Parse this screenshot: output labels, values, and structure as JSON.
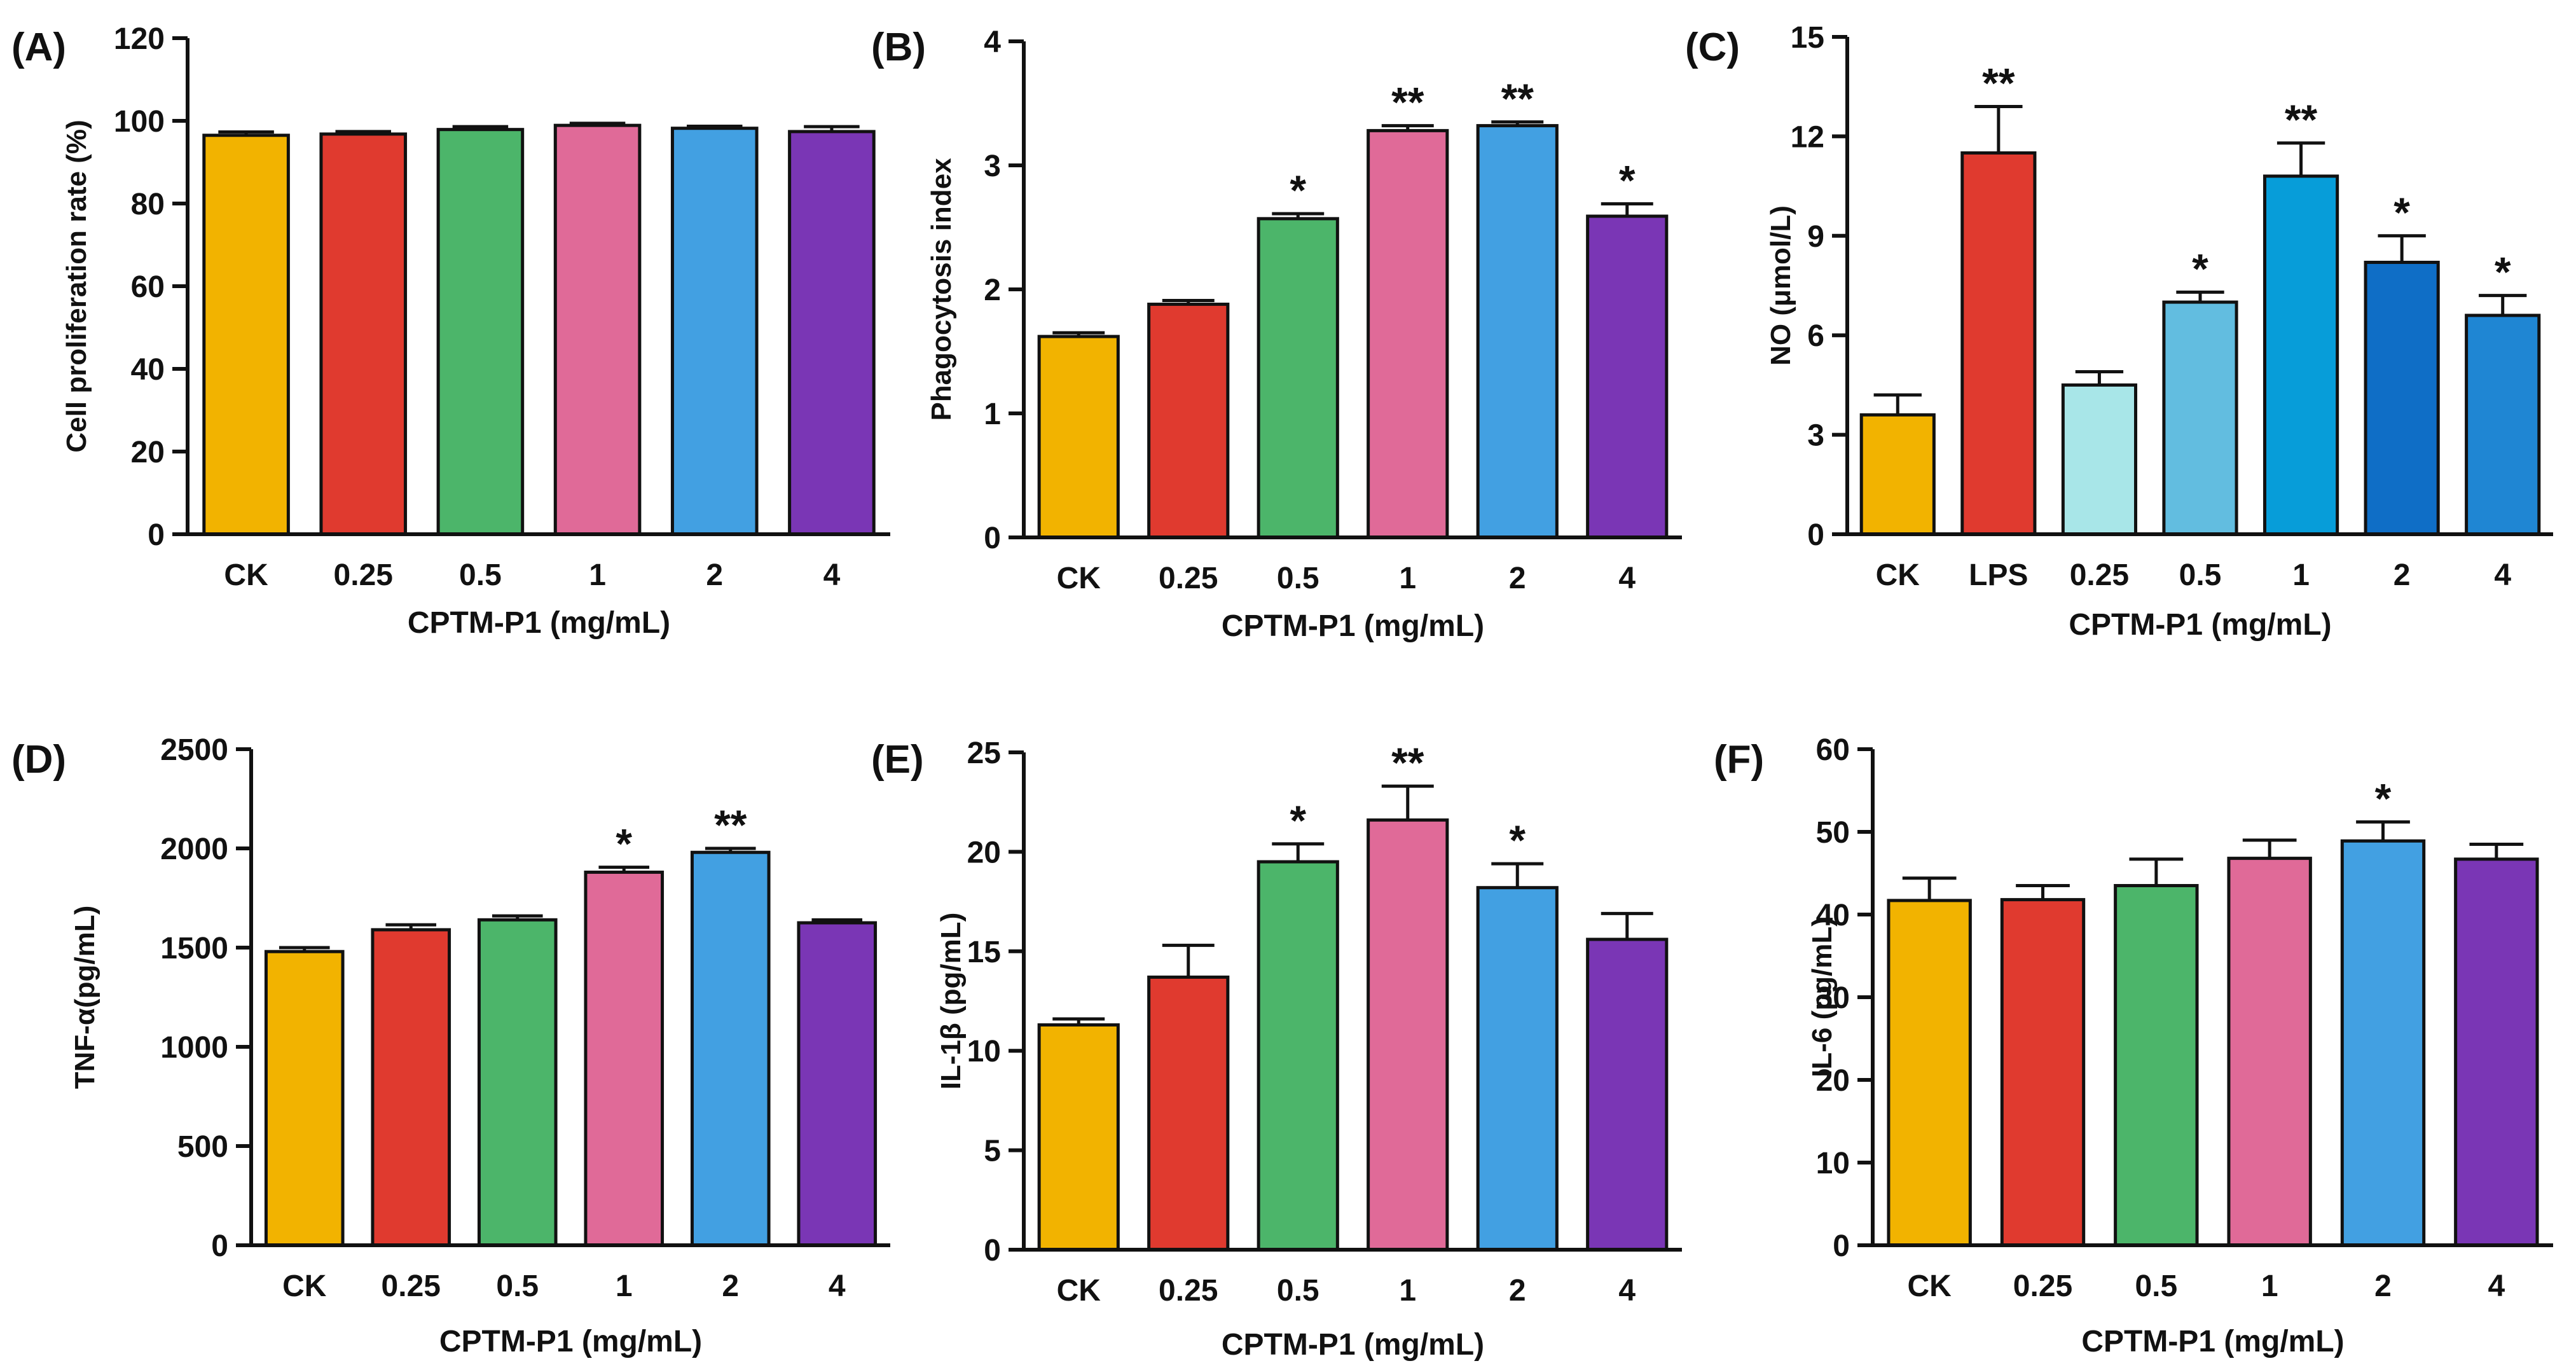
{
  "figure": {
    "background": "#ffffff",
    "axis_color": "#111111",
    "bar_stroke": "#111111"
  },
  "chart_data": [
    {
      "panel_label": "(A)",
      "type": "bar",
      "categories": [
        "CK",
        "0.25",
        "0.5",
        "1",
        "2",
        "4"
      ],
      "values": [
        96.5,
        96.8,
        97.9,
        98.9,
        98.2,
        97.4
      ],
      "errors": [
        0.8,
        0.6,
        0.7,
        0.5,
        0.5,
        1.2
      ],
      "significance": [
        "",
        "",
        "",
        "",
        "",
        ""
      ],
      "colors": [
        "#f2b300",
        "#e03a2f",
        "#4cb56a",
        "#e06a98",
        "#42a0e2",
        "#7a36b5"
      ],
      "xlabel": "CPTM-P1 (mg/mL)",
      "ylabel": "Cell proliferation rate (%)",
      "ylim": [
        0,
        120
      ],
      "yticks": [
        0,
        20,
        40,
        60,
        80,
        100,
        120
      ],
      "ytick_labels": [
        "0",
        "20",
        "40",
        "60",
        "80",
        "100",
        "120"
      ]
    },
    {
      "panel_label": "(B)",
      "type": "bar",
      "categories": [
        "CK",
        "0.25",
        "0.5",
        "1",
        "2",
        "4"
      ],
      "values": [
        1.62,
        1.88,
        2.57,
        3.28,
        3.32,
        2.59
      ],
      "errors": [
        0.03,
        0.03,
        0.04,
        0.04,
        0.03,
        0.1
      ],
      "significance": [
        "",
        "",
        "*",
        "**",
        "**",
        "*"
      ],
      "colors": [
        "#f2b300",
        "#e03a2f",
        "#4cb56a",
        "#e06a98",
        "#42a0e2",
        "#7a36b5"
      ],
      "xlabel": "CPTM-P1 (mg/mL)",
      "ylabel": "Phagocytosis index",
      "ylim": [
        0,
        4
      ],
      "yticks": [
        0,
        1,
        2,
        3,
        4
      ],
      "ytick_labels": [
        "0",
        "1",
        "2",
        "3",
        "4"
      ]
    },
    {
      "panel_label": "(C)",
      "type": "bar",
      "categories": [
        "CK",
        "LPS",
        "0.25",
        "0.5",
        "1",
        "2",
        "4"
      ],
      "values": [
        3.6,
        11.5,
        4.5,
        7.0,
        10.8,
        8.2,
        6.6
      ],
      "errors": [
        0.6,
        1.4,
        0.4,
        0.3,
        1.0,
        0.8,
        0.6
      ],
      "significance": [
        "",
        "**",
        "",
        "*",
        "**",
        "*",
        "*"
      ],
      "colors": [
        "#f2b300",
        "#e03a2f",
        "#a8e6e8",
        "#62bde0",
        "#079dd9",
        "#0f6ec6",
        "#1f86d3"
      ],
      "xlabel": "CPTM-P1 (mg/mL)",
      "ylabel": "NO (μmol/L)",
      "ylim": [
        0,
        15
      ],
      "yticks": [
        0,
        3,
        6,
        9,
        12,
        15
      ],
      "ytick_labels": [
        "0",
        "3",
        "6",
        "9",
        "12",
        "15"
      ]
    },
    {
      "panel_label": "(D)",
      "type": "bar",
      "categories": [
        "CK",
        "0.25",
        "0.5",
        "1",
        "2",
        "4"
      ],
      "values": [
        1480,
        1590,
        1640,
        1880,
        1980,
        1625
      ],
      "errors": [
        20,
        25,
        20,
        25,
        20,
        15
      ],
      "significance": [
        "",
        "",
        "",
        "*",
        "**",
        ""
      ],
      "colors": [
        "#f2b300",
        "#e03a2f",
        "#4cb56a",
        "#e06a98",
        "#42a0e2",
        "#7a36b5"
      ],
      "xlabel": "CPTM-P1 (mg/mL)",
      "ylabel": "TNF-α(pg/mL)",
      "ylim": [
        0,
        2500
      ],
      "yticks": [
        0,
        500,
        1000,
        1500,
        2000,
        2500
      ],
      "ytick_labels": [
        "0",
        "500",
        "1000",
        "1500",
        "2000",
        "2500"
      ]
    },
    {
      "panel_label": "(E)",
      "type": "bar",
      "categories": [
        "CK",
        "0.25",
        "0.5",
        "1",
        "2",
        "4"
      ],
      "values": [
        11.3,
        13.7,
        19.5,
        21.6,
        18.2,
        15.6
      ],
      "errors": [
        0.3,
        1.6,
        0.9,
        1.7,
        1.2,
        1.3
      ],
      "significance": [
        "",
        "",
        "*",
        "**",
        "*",
        ""
      ],
      "colors": [
        "#f2b300",
        "#e03a2f",
        "#4cb56a",
        "#e06a98",
        "#42a0e2",
        "#7a36b5"
      ],
      "xlabel": "CPTM-P1 (mg/mL)",
      "ylabel": "IL-1β (pg/mL)",
      "ylim": [
        0,
        25
      ],
      "yticks": [
        0,
        5,
        10,
        15,
        20,
        25
      ],
      "ytick_labels": [
        "0",
        "5",
        "10",
        "15",
        "20",
        "25"
      ]
    },
    {
      "panel_label": "(F)",
      "type": "bar",
      "categories": [
        "CK",
        "0.25",
        "0.5",
        "1",
        "2",
        "4"
      ],
      "values": [
        41.7,
        41.8,
        43.5,
        46.8,
        48.9,
        46.7
      ],
      "errors": [
        2.7,
        1.7,
        3.2,
        2.2,
        2.3,
        1.8
      ],
      "significance": [
        "",
        "",
        "",
        "",
        "*",
        ""
      ],
      "colors": [
        "#f2b300",
        "#e03a2f",
        "#4cb56a",
        "#e06a98",
        "#42a0e2",
        "#7a36b5"
      ],
      "xlabel": "CPTM-P1 (mg/mL)",
      "ylabel": "IL-6 (pg/mL)",
      "ylim": [
        0,
        60
      ],
      "yticks": [
        0,
        10,
        20,
        30,
        40,
        50,
        60
      ],
      "ytick_labels": [
        "0",
        "10",
        "20",
        "30",
        "40",
        "50",
        "60"
      ]
    }
  ]
}
